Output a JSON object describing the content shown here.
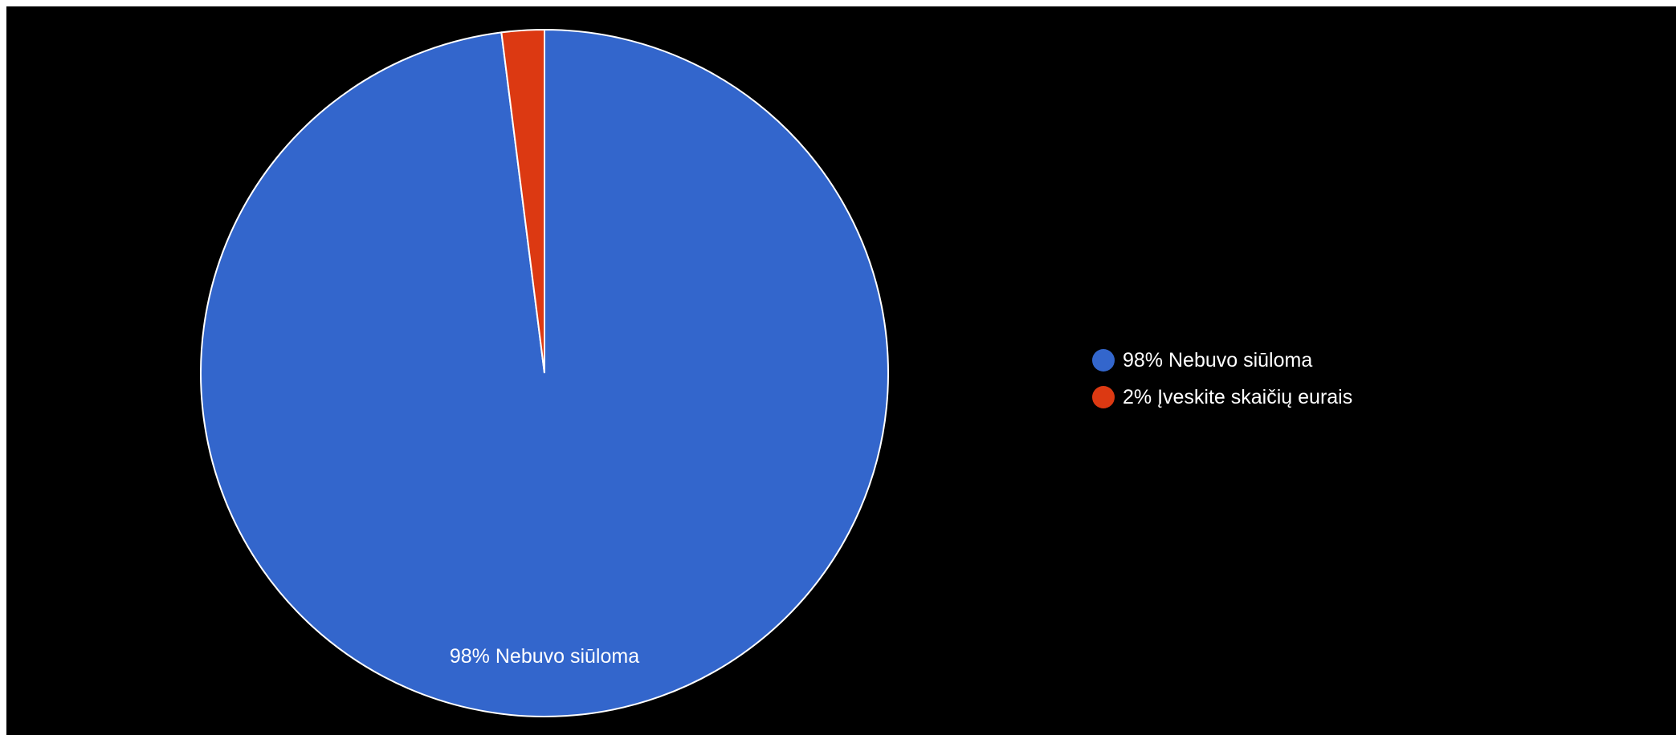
{
  "chart_data": {
    "type": "pie",
    "slices": [
      {
        "label": "Nebuvo siūloma",
        "value": 98,
        "color": "#3366cc"
      },
      {
        "label": "Įveskite skaičių eurais",
        "value": 2,
        "color": "#dc3912"
      }
    ],
    "slice_labels": [
      "98% Nebuvo siūloma"
    ],
    "legend": {
      "position": "right",
      "items": [
        {
          "text": "98% Nebuvo siūloma",
          "color": "#3366cc"
        },
        {
          "text": "2% Įveskite skaičių eurais",
          "color": "#dc3912"
        }
      ]
    },
    "background": "#000000"
  }
}
